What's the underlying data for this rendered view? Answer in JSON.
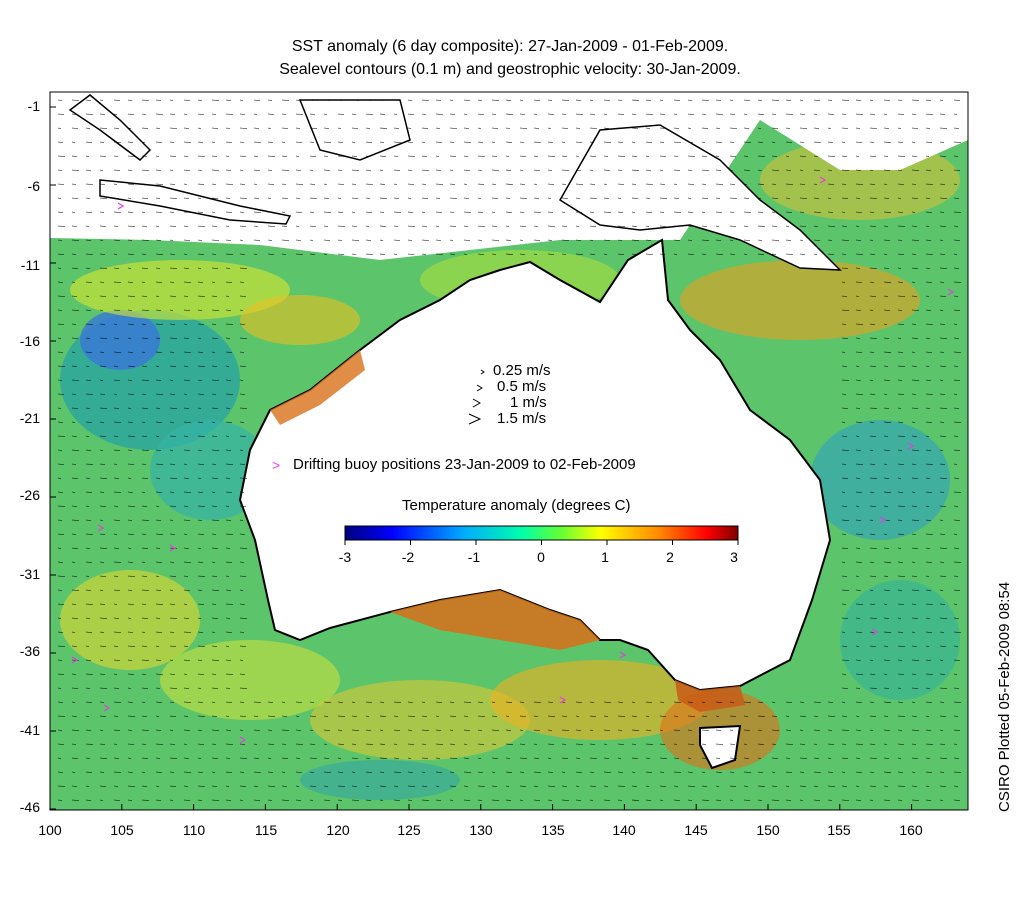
{
  "title_line1": "SST anomaly (6 day composite): 27-Jan-2009 - 01-Feb-2009.",
  "title_line2": "Sealevel contours (0.1 m) and geostrophic velocity: 30-Jan-2009.",
  "y_ticks": [
    "-1",
    "-6",
    "-11",
    "-16",
    "-21",
    "-26",
    "-31",
    "-36",
    "-41",
    "-46"
  ],
  "x_ticks": [
    "100",
    "105",
    "110",
    "115",
    "120",
    "125",
    "130",
    "135",
    "140",
    "145",
    "150",
    "155",
    "160"
  ],
  "velocity_legend": [
    "0.25 m/s",
    "0.5 m/s",
    "1 m/s",
    "1.5 m/s"
  ],
  "buoy_legend_marker": ">",
  "buoy_legend_text": "Drifting buoy positions 23-Jan-2009 to 02-Feb-2009",
  "colorbar_title": "Temperature anomaly (degrees C)",
  "colorbar_ticks": [
    "-3",
    "-2",
    "-1",
    "0",
    "1",
    "2",
    "3"
  ],
  "colorbar_colors": [
    "#00007f",
    "#0000ff",
    "#007fff",
    "#00ffff",
    "#7fff7f",
    "#ffff00",
    "#ff7f00",
    "#ff0000",
    "#7f0000"
  ],
  "credit": "CSIRO Plotted 05-Feb-2009 08:54",
  "buoy_color": "#e040e0",
  "contour_color": "#ffffff"
}
